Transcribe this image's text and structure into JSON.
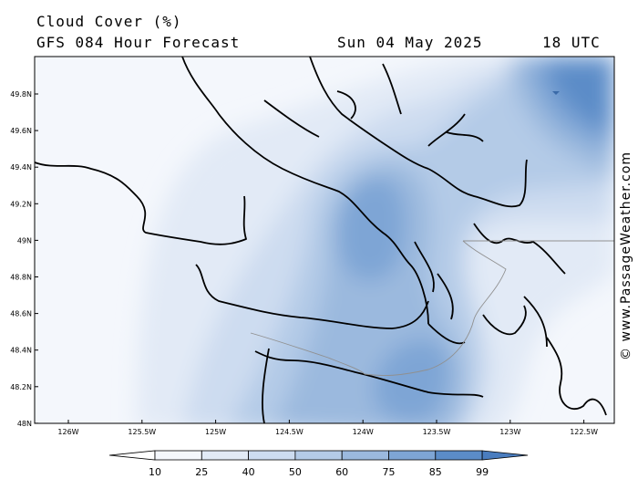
{
  "header": {
    "title": "Cloud Cover (%)",
    "subtitle": "GFS 084 Hour Forecast",
    "valid_date": "Sun 04 May 2025",
    "valid_time": "18 UTC"
  },
  "credit": "© www.PassageWeather.com",
  "map": {
    "lat_ticks": [
      "49.8N",
      "49.6N",
      "49.4N",
      "49.2N",
      "49N",
      "48.8N",
      "48.6N",
      "48.4N",
      "48.2N",
      "48N"
    ],
    "lon_ticks": [
      "126W",
      "125.5W",
      "125W",
      "124.5W",
      "124W",
      "123.5W",
      "123W",
      "122.5W"
    ]
  },
  "legend": {
    "levels": [
      "10",
      "25",
      "40",
      "50",
      "60",
      "75",
      "85",
      "99"
    ],
    "colors": [
      "#ffffff",
      "#f4f7fc",
      "#e2eaf6",
      "#cddcf0",
      "#b4cbe7",
      "#9bb9de",
      "#7ea5d5",
      "#5b8cc8",
      "#4a7dbf"
    ]
  }
}
